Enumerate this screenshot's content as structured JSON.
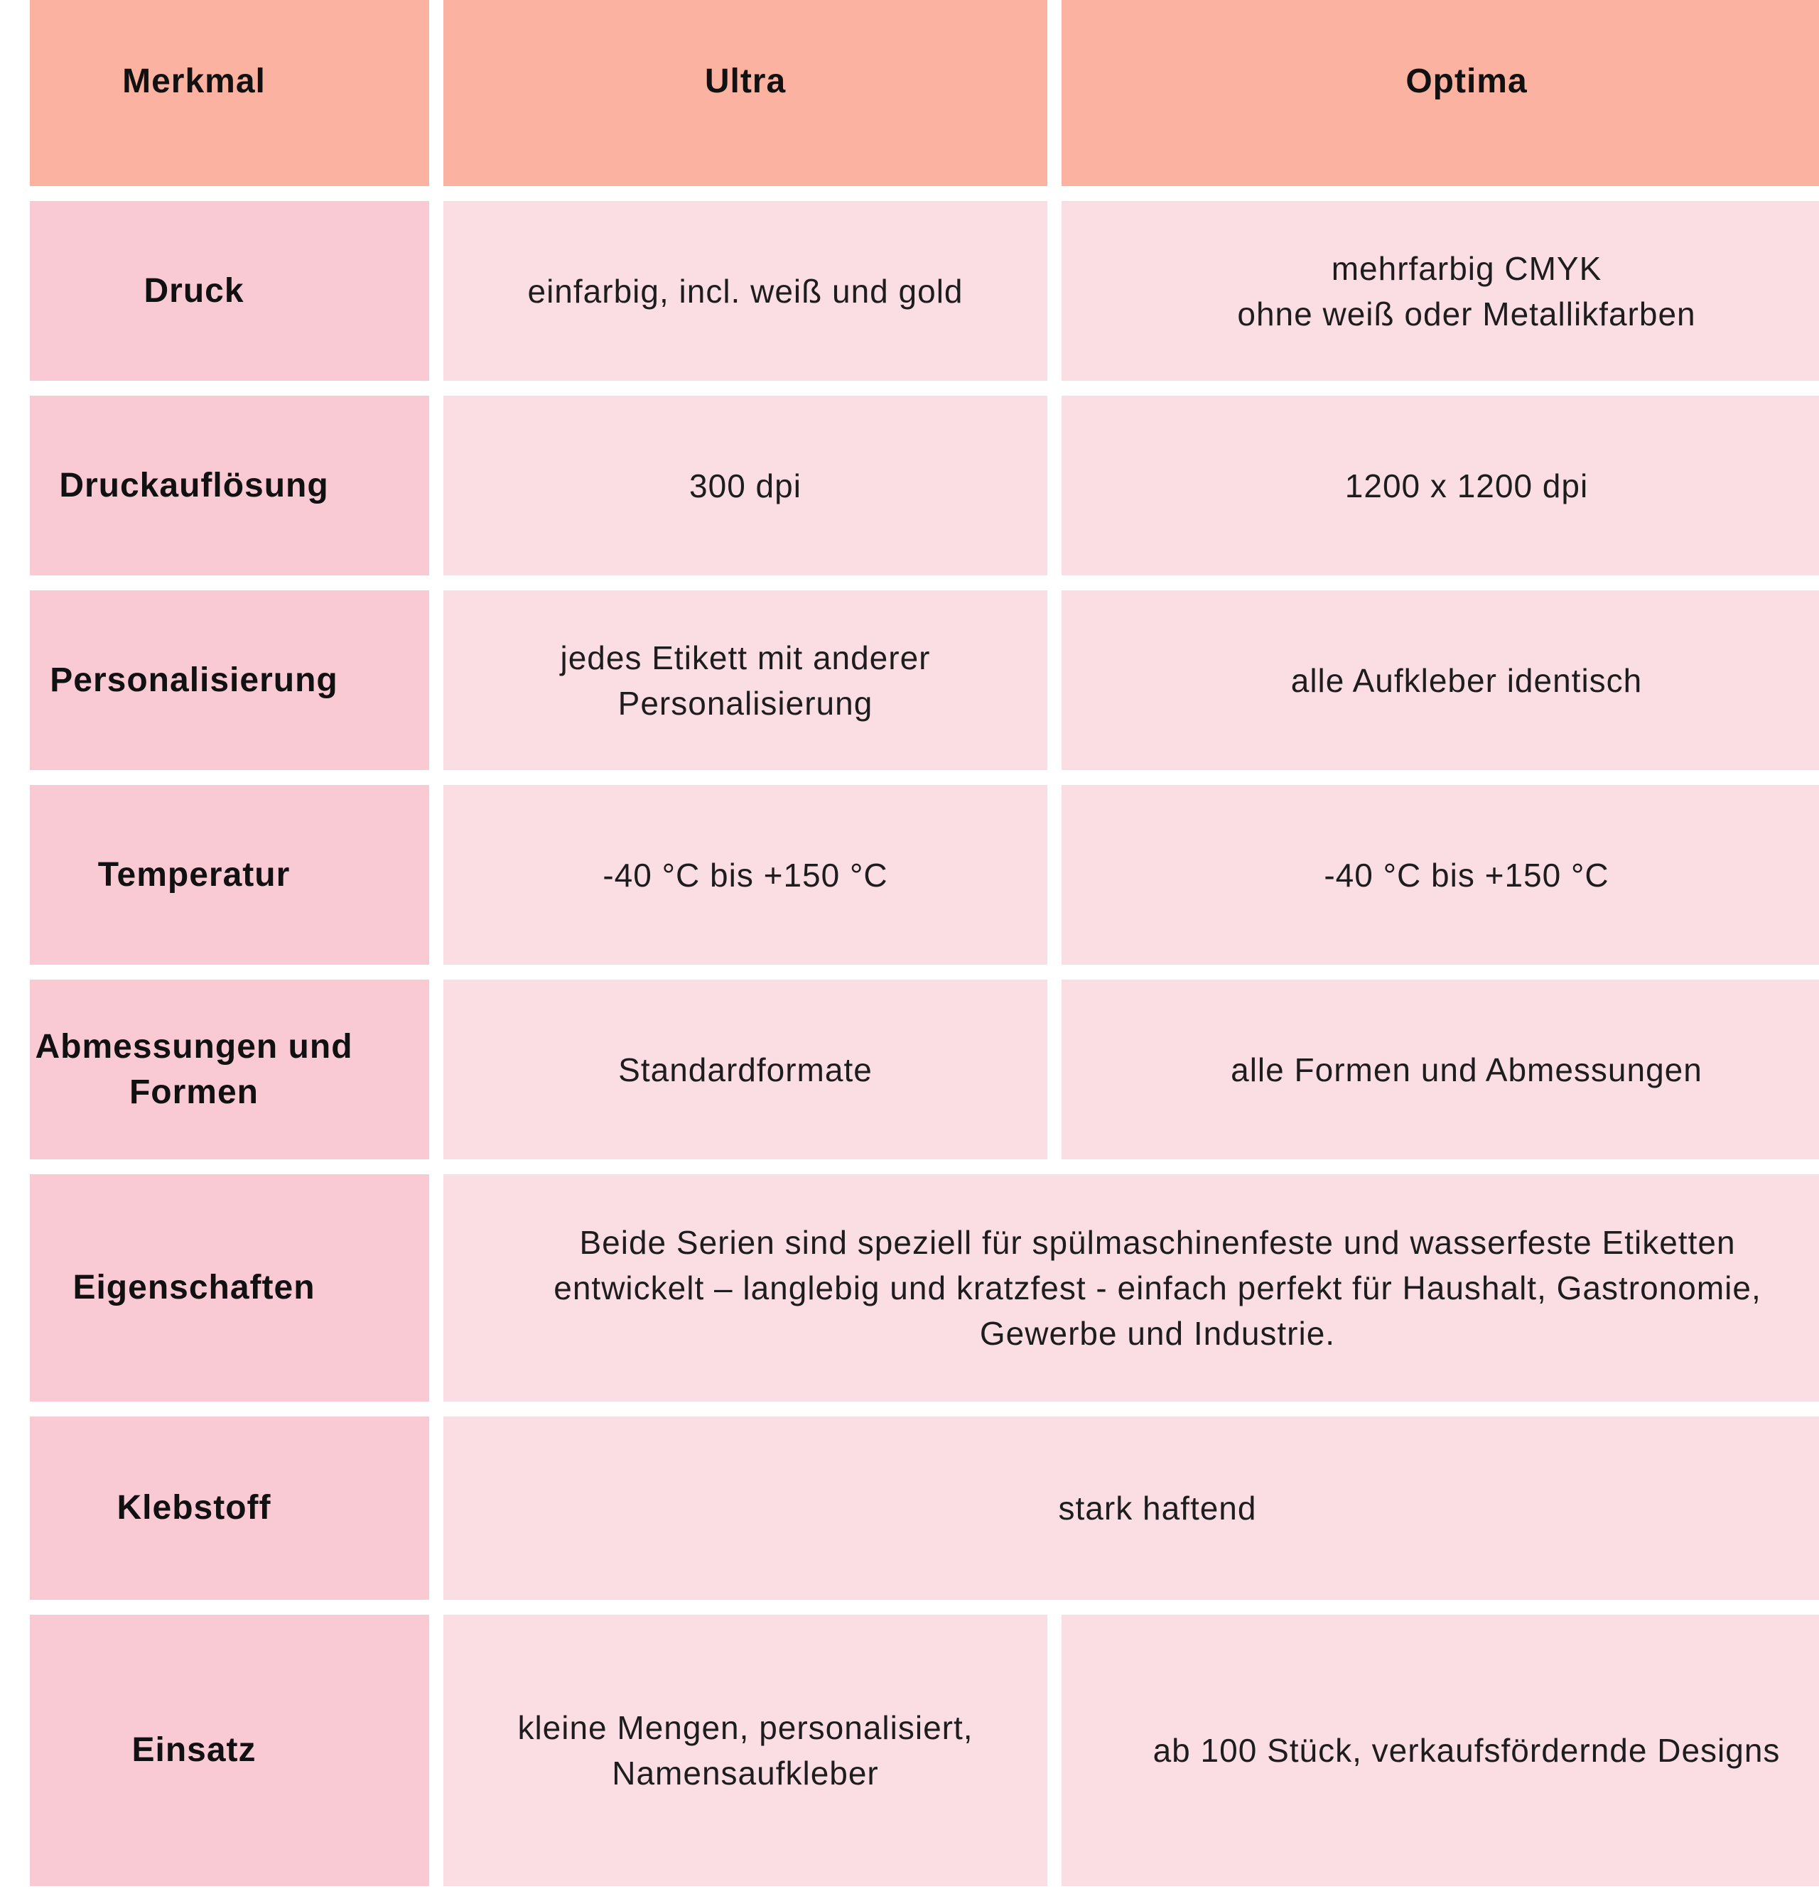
{
  "theme": {
    "header-bg": "#fcb2a1",
    "label-bg": "#f9cad4",
    "cell-bg": "#fadee4",
    "page-bg": "#ffffff",
    "text-color": "#1d1d1d",
    "heading-text-color": "#111111"
  },
  "table": {
    "header": {
      "feature": "Merkmal",
      "ultra": "Ultra",
      "optima": "Optima"
    },
    "rows": [
      {
        "label": "Druck",
        "ultra": "einfarbig, incl. weiß und gold",
        "optima": "mehrfarbig CMYK\nohne weiß oder Metallikfarben"
      },
      {
        "label": "Druckauflösung",
        "ultra": "300 dpi",
        "optima": "1200 x 1200 dpi"
      },
      {
        "label": "Personalisierung",
        "ultra": "jedes Etikett mit anderer\nPersonalisierung",
        "optima": "alle Aufkleber identisch"
      },
      {
        "label": "Temperatur",
        "ultra": "-40 °C bis +150 °C",
        "optima": "-40 °C bis +150 °C"
      },
      {
        "label": "Abmessungen und\nFormen",
        "ultra": "Standardformate",
        "optima": "alle Formen und Abmessungen"
      },
      {
        "label": "Eigenschaften",
        "merged": "Beide Serien sind speziell für spülmaschinenfeste und wasserfeste Etiketten\nentwickelt – langlebig und kratzfest - einfach perfekt für Haushalt, Gastronomie,\nGewerbe und Industrie."
      },
      {
        "label": "Klebstoff",
        "merged": "stark haftend"
      },
      {
        "label": "Einsatz",
        "ultra": "kleine Mengen, personalisiert,\nNamensaufkleber",
        "optima": "ab 100 Stück, verkaufsfördernde Designs"
      }
    ]
  }
}
